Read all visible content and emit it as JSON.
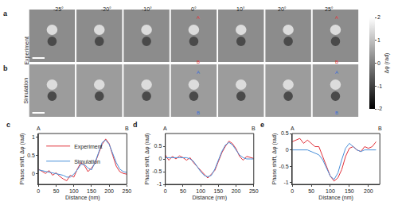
{
  "image_panels": {
    "rows": [
      {
        "letter": "a",
        "label": "Experiment",
        "color": "#e0303a"
      },
      {
        "letter": "b",
        "label": "Simulation",
        "color": "#3a6fd8"
      }
    ],
    "angles": [
      "-25°",
      "-20°",
      "-10°",
      "0°",
      "10°",
      "20°",
      "25°"
    ],
    "markers": [
      "A",
      "B"
    ],
    "colorbar": {
      "title": "Δφ (rad)",
      "range": [
        -2,
        2
      ],
      "ticks": [
        2,
        1,
        0,
        -1,
        -2
      ]
    }
  },
  "chart_data": [
    {
      "type": "line",
      "letter": "c",
      "x_label": "Distance (nm)",
      "y_label": "Phase shift, Δφ (rad)",
      "end_labels": [
        "A",
        "B"
      ],
      "legend": "upper left",
      "xlim": [
        0,
        250
      ],
      "xticks": [
        0,
        50,
        100,
        150,
        200,
        250
      ],
      "ylim": [
        -0.3,
        1.1
      ],
      "yticks": [
        0,
        0.5,
        1
      ],
      "x": [
        0,
        10,
        20,
        30,
        40,
        50,
        60,
        70,
        80,
        90,
        100,
        110,
        120,
        130,
        140,
        150,
        160,
        170,
        180,
        190,
        200,
        210,
        220,
        230,
        240,
        250
      ],
      "series": [
        {
          "name": "Experiment",
          "color": "#e0303a",
          "values": [
            0.12,
            0.05,
            0.0,
            0.08,
            -0.05,
            0.02,
            -0.08,
            -0.15,
            -0.2,
            -0.05,
            -0.1,
            0.12,
            0.3,
            0.22,
            0.05,
            0.15,
            0.28,
            0.55,
            0.8,
            0.95,
            0.82,
            0.5,
            0.2,
            0.05,
            0.0,
            -0.02
          ]
        },
        {
          "name": "Simulation",
          "color": "#4a90d9",
          "values": [
            0.1,
            0.08,
            0.05,
            0.03,
            0.02,
            0.0,
            -0.02,
            -0.05,
            -0.1,
            -0.1,
            -0.02,
            0.1,
            0.25,
            0.25,
            0.15,
            0.1,
            0.3,
            0.6,
            0.85,
            0.92,
            0.8,
            0.55,
            0.3,
            0.12,
            0.05,
            0.03
          ]
        }
      ]
    },
    {
      "type": "line",
      "letter": "d",
      "x_label": "Distance (nm)",
      "y_label": "Phase shift, Δφ (rad)",
      "end_labels": [
        "A",
        "B"
      ],
      "xlim": [
        0,
        250
      ],
      "xticks": [
        0,
        50,
        100,
        150,
        200,
        250
      ],
      "ylim": [
        -1,
        1
      ],
      "yticks": [
        -1,
        -0.5,
        0,
        0.5
      ],
      "x": [
        0,
        10,
        20,
        30,
        40,
        50,
        60,
        70,
        80,
        90,
        100,
        110,
        120,
        130,
        140,
        150,
        160,
        170,
        180,
        190,
        200,
        210,
        220,
        230,
        240,
        250
      ],
      "series": [
        {
          "color": "#e0303a",
          "values": [
            0.15,
            -0.05,
            0.1,
            0.0,
            0.12,
            0.05,
            -0.05,
            0.05,
            -0.15,
            -0.3,
            -0.45,
            -0.6,
            -0.75,
            -0.6,
            -0.45,
            -0.1,
            0.25,
            0.5,
            0.7,
            0.6,
            0.4,
            0.1,
            -0.05,
            0.1,
            0.05,
            0.02
          ]
        },
        {
          "color": "#4a90d9",
          "values": [
            0.05,
            0.05,
            0.05,
            0.05,
            0.05,
            0.05,
            0.05,
            0.0,
            -0.1,
            -0.3,
            -0.5,
            -0.65,
            -0.7,
            -0.65,
            -0.4,
            -0.05,
            0.3,
            0.55,
            0.65,
            0.55,
            0.35,
            0.15,
            0.05,
            0.0,
            0.0,
            0.0
          ]
        }
      ]
    },
    {
      "type": "line",
      "letter": "e",
      "x_label": "Distance (nm)",
      "y_label": "Phase shift, Δφ (rad)",
      "end_labels": [
        "A",
        "B"
      ],
      "xlim": [
        0,
        230
      ],
      "xticks": [
        0,
        50,
        100,
        150,
        200
      ],
      "ylim": [
        -1.05,
        0.5
      ],
      "yticks": [
        -1,
        -0.5,
        0,
        0.5
      ],
      "x": [
        0,
        10,
        20,
        30,
        40,
        50,
        60,
        70,
        80,
        90,
        100,
        110,
        120,
        130,
        140,
        150,
        160,
        170,
        180,
        190,
        200,
        210,
        220
      ],
      "series": [
        {
          "color": "#e0303a",
          "values": [
            0.25,
            0.3,
            0.35,
            0.2,
            0.3,
            0.2,
            0.1,
            0.1,
            -0.2,
            -0.5,
            -0.8,
            -0.95,
            -0.85,
            -0.6,
            -0.2,
            0.05,
            0.1,
            0.0,
            -0.05,
            0.1,
            0.05,
            0.1,
            0.25
          ]
        },
        {
          "color": "#4a90d9",
          "values": [
            0.0,
            0.0,
            0.0,
            0.0,
            0.0,
            -0.05,
            -0.1,
            -0.15,
            -0.3,
            -0.55,
            -0.8,
            -0.9,
            -0.7,
            -0.3,
            0.05,
            0.2,
            0.1,
            0.0,
            -0.05,
            0.0,
            0.0,
            0.0,
            0.0
          ]
        }
      ]
    }
  ]
}
